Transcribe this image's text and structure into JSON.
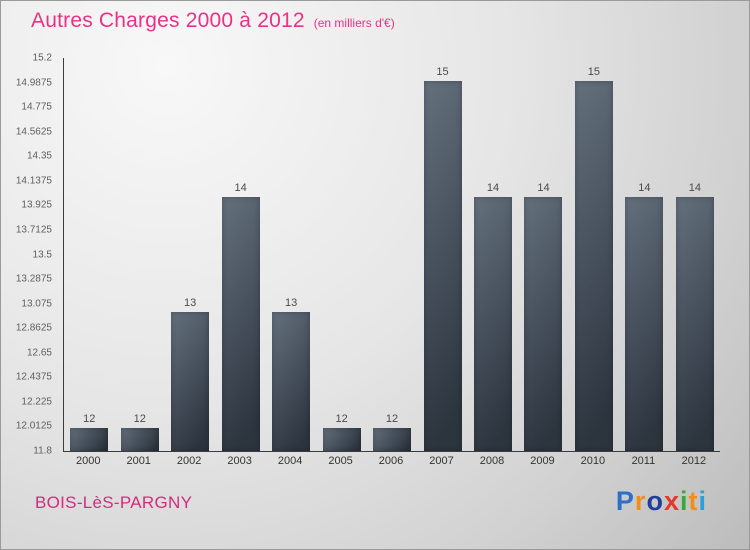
{
  "header": {
    "title": "Autres Charges 2000 à 2012",
    "subtitle": "(en milliers d'€)"
  },
  "footer": {
    "location": "BOIS-LèS-PARGNY",
    "logo_letters": [
      {
        "ch": "P",
        "color": "#2d6fc9"
      },
      {
        "ch": "r",
        "color": "#f28c1c"
      },
      {
        "ch": "o",
        "color": "#1f3d99"
      },
      {
        "ch": "x",
        "color": "#e03a2f"
      },
      {
        "ch": "i",
        "color": "#3aa83a"
      },
      {
        "ch": "t",
        "color": "#f28c1c"
      },
      {
        "ch": "i",
        "color": "#2d9fd8"
      }
    ]
  },
  "colors": {
    "title_pink": "#e93286",
    "location_pink": "#d42b7c",
    "bar_light": "#64707d",
    "bar_dark": "#2c343e",
    "axis": "#3c3c3c"
  },
  "chart_data": {
    "type": "bar",
    "title": "Autres Charges 2000 à 2012",
    "subtitle": "(en milliers d'€)",
    "categories": [
      "2000",
      "2001",
      "2002",
      "2003",
      "2004",
      "2005",
      "2006",
      "2007",
      "2008",
      "2009",
      "2010",
      "2011",
      "2012"
    ],
    "values": [
      12,
      12,
      13,
      14,
      13,
      12,
      12,
      15,
      14,
      14,
      15,
      14,
      14
    ],
    "ylim": [
      11.8,
      15.2
    ],
    "yticks": [
      15.2,
      14.9875,
      14.775,
      14.5625,
      14.35,
      14.1375,
      13.925,
      13.7125,
      13.5,
      13.2875,
      13.075,
      12.8625,
      12.65,
      12.4375,
      12.225,
      12.0125,
      11.8
    ],
    "ytick_labels": [
      "15.2",
      "14.9875",
      "14.775",
      "14.5625",
      "14.35",
      "14.1375",
      "13.925",
      "13.7125",
      "13.5",
      "13.2875",
      "13.075",
      "12.8625",
      "12.65",
      "12.4375",
      "12.225",
      "12.0125",
      "11.8"
    ],
    "grid": false,
    "legend": false,
    "xlabel": "",
    "ylabel": "",
    "bar_color_light": "#64707d",
    "bar_color_dark": "#2c343e"
  }
}
